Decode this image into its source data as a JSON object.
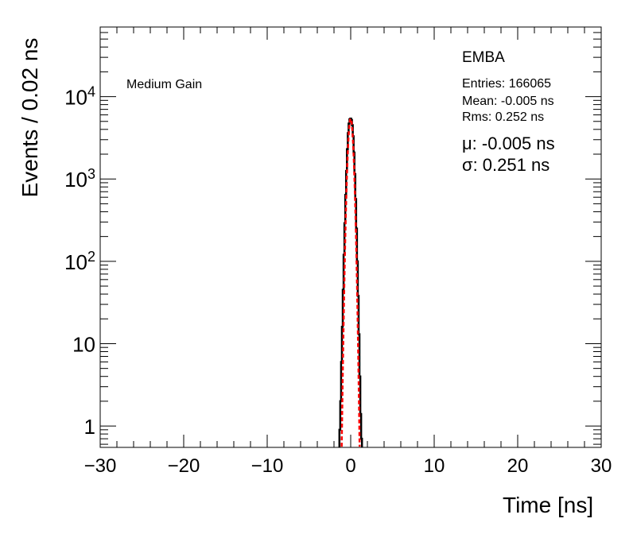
{
  "chart_data": {
    "type": "line",
    "title": "",
    "xlabel": "Time [ns]",
    "ylabel": "Events / 0.02 ns",
    "xlim": [
      -30,
      30
    ],
    "ylim": [
      0.55,
      70000
    ],
    "y_scale": "log",
    "x_ticks": [
      -30,
      -20,
      -10,
      0,
      10,
      20,
      30
    ],
    "x_tick_labels": [
      "−30",
      "−20",
      "−10",
      "0",
      "10",
      "20",
      "30"
    ],
    "y_ticks": [
      1,
      10,
      100,
      1000,
      10000
    ],
    "y_tick_labels": [
      "1",
      "10",
      "10^2",
      "10^3",
      "10^4"
    ],
    "grid": false,
    "legend": "none",
    "colors": {
      "histogram": "#000000",
      "fit": "#ff0000"
    },
    "series": [
      {
        "values": {
          "x": [
            -1.3,
            -1.2,
            -1.1,
            -1.0,
            -0.9,
            -0.8,
            -0.7,
            -0.6,
            -0.5,
            -0.4,
            -0.3,
            -0.2,
            -0.1,
            0.0,
            0.1,
            0.2,
            0.3,
            0.4,
            0.5,
            0.6,
            0.7,
            0.8,
            0.9,
            1.0,
            1.1,
            1.2,
            1.3
          ],
          "y": [
            0.9,
            2,
            6,
            16,
            45,
            120,
            290,
            640,
            1250,
            2300,
            3600,
            4700,
            5300,
            5400,
            5200,
            4500,
            3300,
            2100,
            1150,
            570,
            250,
            100,
            38,
            13,
            4,
            1.4,
            0.7
          ]
        }
      },
      {
        "values": {
          "mu": -0.005,
          "sigma": 0.251,
          "amplitude": 5400
        }
      }
    ],
    "stats": {
      "title": "EMBA",
      "entries": "Entries: 166065",
      "mean": "Mean: -0.005 ns",
      "rms": "Rms: 0.252 ns"
    },
    "fit": {
      "mu": "μ: -0.005 ns",
      "sigma": "σ: 0.251 ns"
    },
    "annotation": "Medium Gain"
  }
}
